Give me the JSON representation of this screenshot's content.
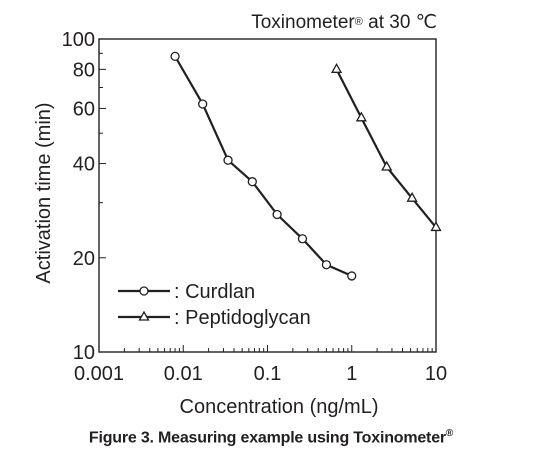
{
  "chart_data": {
    "type": "line",
    "title": "Toxinometer",
    "title_mark": "®",
    "title_suffix": "at 30 ℃",
    "xlabel": "Concentration (ng/mL)",
    "ylabel": "Activation time (min)",
    "x_scale": "log",
    "y_scale": "log",
    "xlim": [
      0.001,
      10
    ],
    "ylim": [
      10,
      100
    ],
    "x_ticks": [
      {
        "value": 0.001,
        "label": "0.001"
      },
      {
        "value": 0.01,
        "label": "0.01"
      },
      {
        "value": 0.1,
        "label": "0.1"
      },
      {
        "value": 1,
        "label": "1"
      },
      {
        "value": 10,
        "label": "10"
      }
    ],
    "y_ticks": [
      {
        "value": 10,
        "label": "10"
      },
      {
        "value": 20,
        "label": "20"
      },
      {
        "value": 40,
        "label": "40"
      },
      {
        "value": 60,
        "label": "60"
      },
      {
        "value": 80,
        "label": "80"
      },
      {
        "value": 100,
        "label": "100"
      }
    ],
    "grid": false,
    "legend_position": "bottom-left",
    "series": [
      {
        "name": "Curdlan",
        "legend_label": ": Curdlan",
        "marker": "circle",
        "x": [
          0.008,
          0.017,
          0.034,
          0.066,
          0.13,
          0.26,
          0.5,
          1.0
        ],
        "y": [
          88,
          62,
          41,
          35,
          27.5,
          23,
          19,
          17.5
        ]
      },
      {
        "name": "Peptidoglycan",
        "legend_label": ": Peptidoglycan",
        "marker": "triangle",
        "x": [
          0.66,
          1.3,
          2.6,
          5.2,
          10
        ],
        "y": [
          80,
          56,
          39,
          31,
          25
        ]
      }
    ]
  },
  "caption": {
    "text": "Figure 3. Measuring example using Toxinometer",
    "mark": "®"
  }
}
